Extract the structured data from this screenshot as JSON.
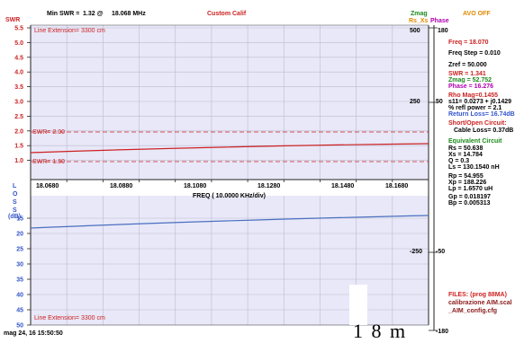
{
  "header": {
    "swr_axis": "SWR",
    "min_swr_label": "Min SWR =",
    "min_swr_value": "1.32 @",
    "min_swr_freq": "18.068 MHz",
    "mode": "Custom Calif",
    "zmag_legend": "Zmag",
    "rs_xs_legend": "Rs_Xs",
    "phase_legend": "Phase",
    "avo": "AVO OFF"
  },
  "colors": {
    "swr_curve": "#cc2222",
    "loss_curve": "#4a6fc0",
    "plot_bg": "#e8e8f8",
    "grid": "#bcbcd0",
    "zmag": "#1c8a1c",
    "phase": "#b000b0",
    "avo": "#e08a00"
  },
  "swr_panel": {
    "y_ticks": [
      "5.5",
      "5.0",
      "4.5",
      "4.0",
      "3.5",
      "3.0",
      "2.5",
      "2.0",
      "1.5",
      "1.0"
    ],
    "line_extension": "Line Extension= 3300 cm",
    "swr_marker_2": "SWR= 2.00",
    "swr_marker_1": "SWR= 1.80",
    "right_scale_top": "500",
    "right_scale_mid": "250",
    "right_phase_top": "180",
    "right_phase_mid": "50"
  },
  "x_axis": {
    "ticks": [
      "18.0680",
      "18.0880",
      "18.1080",
      "18.1280",
      "18.1480",
      "18.1680"
    ],
    "label": "FREQ ( 10.0000 KHz/div)"
  },
  "loss_panel": {
    "axis_letters": [
      "L",
      "O",
      "S",
      "S",
      "(dB)"
    ],
    "y_ticks": [
      "15",
      "20",
      "25",
      "30",
      "35",
      "40",
      "45",
      "50"
    ],
    "right_scale_bottom": "-250",
    "right_phase_bottom": "-50",
    "right_phase_end": "-180",
    "line_extension": "Line Extension= 3300 cm"
  },
  "readout": {
    "freq": "Freq = 18.070",
    "freq_step": "Freq Step = 0.010",
    "zref": "Zref = 50.000",
    "swr": "SWR = 1.341",
    "zmag": "Zmag = 52.752",
    "phase": "Phase = 16.276",
    "rho_mag": "Rho Mag=0.1455",
    "s11": "s11= 0.0273 + j0.1429",
    "refl_power": "% refl power = 2.1",
    "return_loss": "Return Loss= 16.74dB",
    "short_open_title": "Short/Open Circuit:",
    "cable_loss": "Cable Loss= 0.37dB",
    "equiv_title": "Equivalent Circuit",
    "rs": "Rs = 50.638",
    "xs": "Xs = 14.784",
    "q": "Q = 0.3",
    "ls": "Ls = 130.1540 nH",
    "rp": "Rp = 54.955",
    "xp": "Xp = 188.226",
    "lp": "Lp = 1.6570 uH",
    "gp": "Gp = 0.018197",
    "bp": "Bp = 0.005313",
    "files_title": "FILES: (prog 88MA)",
    "file1": "calibrazione AIM.scal",
    "file2": "_AIM_config.cfg"
  },
  "footer": {
    "timestamp": "mag 24, 16  15:50:50",
    "overlay": "1 8 m"
  }
}
